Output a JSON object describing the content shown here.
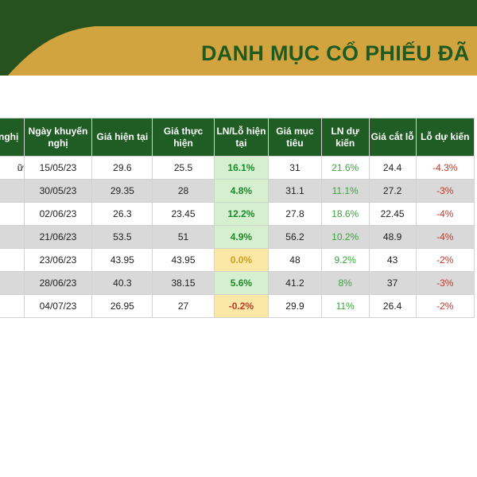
{
  "header": {
    "title": "DANH MỤC CỔ PHIẾU ĐÃ K",
    "colors": {
      "dark_green": "#26521f",
      "gold": "#d1a43f",
      "title_text": "#1f5a23"
    }
  },
  "table": {
    "columns": [
      "nghị",
      "Ngày khuyến nghị",
      "Giá hiện tại",
      "Giá thực hiện",
      "LN/Lỗ hiện tại",
      "Giá mục tiêu",
      "LN dự kiến",
      "Giá cắt lỗ",
      "Lỗ dự kiến"
    ],
    "rows": [
      {
        "c0": "ữ",
        "date": "15/05/23",
        "price": "29.6",
        "exec": "25.5",
        "pl": "16.1%",
        "pl_state": "pos",
        "target": "31",
        "exp": "21.6%",
        "stop": "24.4",
        "loss": "-4.3%"
      },
      {
        "c0": "",
        "date": "30/05/23",
        "price": "29.35",
        "exec": "28",
        "pl": "4.8%",
        "pl_state": "pos",
        "target": "31.1",
        "exp": "11.1%",
        "stop": "27.2",
        "loss": "-3%"
      },
      {
        "c0": "",
        "date": "02/06/23",
        "price": "26.3",
        "exec": "23.45",
        "pl": "12.2%",
        "pl_state": "pos",
        "target": "27.8",
        "exp": "18.6%",
        "stop": "22.45",
        "loss": "-4%"
      },
      {
        "c0": "",
        "date": "21/06/23",
        "price": "53.5",
        "exec": "51",
        "pl": "4.9%",
        "pl_state": "pos",
        "target": "56.2",
        "exp": "10.2%",
        "stop": "48.9",
        "loss": "-4%"
      },
      {
        "c0": "",
        "date": "23/06/23",
        "price": "43.95",
        "exec": "43.95",
        "pl": "0.0%",
        "pl_state": "zero",
        "target": "48",
        "exp": "9.2%",
        "stop": "43",
        "loss": "-2%"
      },
      {
        "c0": "",
        "date": "28/06/23",
        "price": "40.3",
        "exec": "38.15",
        "pl": "5.6%",
        "pl_state": "pos",
        "target": "41.2",
        "exp": "8%",
        "stop": "37",
        "loss": "-3%"
      },
      {
        "c0": "",
        "date": "04/07/23",
        "price": "26.95",
        "exec": "27",
        "pl": "-0.2%",
        "pl_state": "neg",
        "target": "29.9",
        "exp": "11%",
        "stop": "26.4",
        "loss": "-2%"
      }
    ],
    "pl_colors": {
      "pos_bg": "#d6efcf",
      "zero_bg": "#fbe7a6",
      "neg_bg": "#fbe7a6"
    }
  }
}
